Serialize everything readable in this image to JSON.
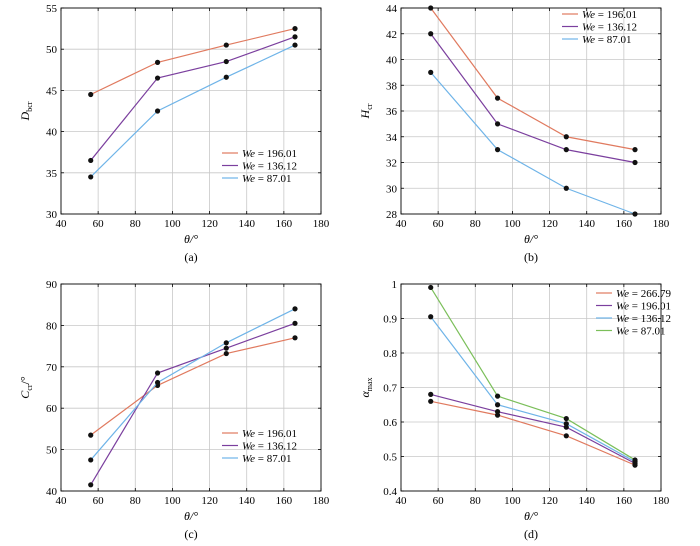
{
  "colors": {
    "red": "#e07a5f",
    "purple": "#7b3f9e",
    "blue": "#6fb4e8",
    "green": "#7bbf5a",
    "marker": "#111111"
  },
  "chart_data": [
    {
      "type": "line",
      "panel_label": "(a)",
      "xlabel": "θ/°",
      "ylabel": "D",
      "ylabel_sub": "bcr",
      "xlim": [
        40,
        180
      ],
      "ylim": [
        30,
        55
      ],
      "xticks": [
        40,
        60,
        80,
        100,
        120,
        140,
        160,
        180
      ],
      "yticks": [
        30,
        35,
        40,
        45,
        50,
        55
      ],
      "legend_position": "bottom-right",
      "series": [
        {
          "name": "We = 196.01",
          "we": "We",
          "value": " = 196.01",
          "color": "red",
          "x": [
            56,
            92,
            129,
            166
          ],
          "y": [
            44.5,
            48.4,
            50.5,
            52.5
          ]
        },
        {
          "name": "We = 136.12",
          "we": "We",
          "value": " = 136.12",
          "color": "purple",
          "x": [
            56,
            92,
            129,
            166
          ],
          "y": [
            36.5,
            46.5,
            48.5,
            51.5
          ]
        },
        {
          "name": "We = 87.01",
          "we": "We",
          "value": " =   87.01",
          "color": "blue",
          "x": [
            56,
            92,
            129,
            166
          ],
          "y": [
            34.5,
            42.5,
            46.6,
            50.5
          ]
        }
      ]
    },
    {
      "type": "line",
      "panel_label": "(b)",
      "xlabel": "θ/°",
      "ylabel": "H",
      "ylabel_sub": "cr",
      "xlim": [
        40,
        180
      ],
      "ylim": [
        28,
        44
      ],
      "xticks": [
        40,
        60,
        80,
        100,
        120,
        140,
        160,
        180
      ],
      "yticks": [
        28,
        30,
        32,
        34,
        36,
        38,
        40,
        42,
        44
      ],
      "legend_position": "top-right",
      "series": [
        {
          "name": "We = 196.01",
          "we": "We",
          "value": " = 196.01",
          "color": "red",
          "x": [
            56,
            92,
            129,
            166
          ],
          "y": [
            44,
            37,
            34,
            33
          ]
        },
        {
          "name": "We = 136.12",
          "we": "We",
          "value": " = 136.12",
          "color": "purple",
          "x": [
            56,
            92,
            129,
            166
          ],
          "y": [
            42,
            35,
            33,
            32
          ]
        },
        {
          "name": "We = 87.01",
          "we": "We",
          "value": " =   87.01",
          "color": "blue",
          "x": [
            56,
            92,
            129,
            166
          ],
          "y": [
            39,
            33,
            30,
            28
          ]
        }
      ]
    },
    {
      "type": "line",
      "panel_label": "(c)",
      "xlabel": "θ/°",
      "ylabel": "C",
      "ylabel_sub": "cr",
      "ylabel_unit": "/°",
      "xlim": [
        40,
        180
      ],
      "ylim": [
        40,
        90
      ],
      "xticks": [
        40,
        60,
        80,
        100,
        120,
        140,
        160,
        180
      ],
      "yticks": [
        40,
        50,
        60,
        70,
        80,
        90
      ],
      "legend_position": "bottom-right",
      "series": [
        {
          "name": "We = 196.01",
          "we": "We",
          "value": " = 196.01",
          "color": "red",
          "x": [
            56,
            92,
            129,
            166
          ],
          "y": [
            53.5,
            65.5,
            73.2,
            77
          ]
        },
        {
          "name": "We = 136.12",
          "we": "We",
          "value": " = 136.12",
          "color": "purple",
          "x": [
            56,
            92,
            129,
            166
          ],
          "y": [
            41.5,
            68.5,
            74.5,
            80.5
          ]
        },
        {
          "name": "We = 87.01",
          "we": "We",
          "value": " =   87.01",
          "color": "blue",
          "x": [
            56,
            92,
            129,
            166
          ],
          "y": [
            47.5,
            66.2,
            75.8,
            84
          ]
        }
      ]
    },
    {
      "type": "line",
      "panel_label": "(d)",
      "xlabel": "θ/°",
      "ylabel": "α",
      "ylabel_sub": "max",
      "xlim": [
        40,
        180
      ],
      "ylim": [
        0.4,
        1.0
      ],
      "xticks": [
        40,
        60,
        80,
        100,
        120,
        140,
        160,
        180
      ],
      "yticks": [
        0.4,
        0.5,
        0.6,
        0.7,
        0.8,
        0.9,
        1.0
      ],
      "ytick_labels": [
        "0.4",
        "0.5",
        "0.6",
        "0.7",
        "0.8",
        "0.9",
        "1"
      ],
      "legend_position": "top-right",
      "series": [
        {
          "name": "We = 266.79",
          "we": "We",
          "value": " = 266.79",
          "color": "red",
          "x": [
            56,
            92,
            129,
            166
          ],
          "y": [
            0.66,
            0.62,
            0.56,
            0.475
          ]
        },
        {
          "name": "We = 196.01",
          "we": "We",
          "value": " = 196.01",
          "color": "purple",
          "x": [
            56,
            92,
            129,
            166
          ],
          "y": [
            0.68,
            0.63,
            0.585,
            0.48
          ]
        },
        {
          "name": "We = 136.12",
          "we": "We",
          "value": " = 136.12",
          "color": "blue",
          "x": [
            56,
            92,
            129,
            166
          ],
          "y": [
            0.905,
            0.65,
            0.595,
            0.485
          ]
        },
        {
          "name": "We = 87.01",
          "we": "We",
          "value": " =   87.01",
          "color": "green",
          "x": [
            56,
            92,
            129,
            166
          ],
          "y": [
            0.99,
            0.675,
            0.61,
            0.49
          ]
        }
      ]
    }
  ]
}
